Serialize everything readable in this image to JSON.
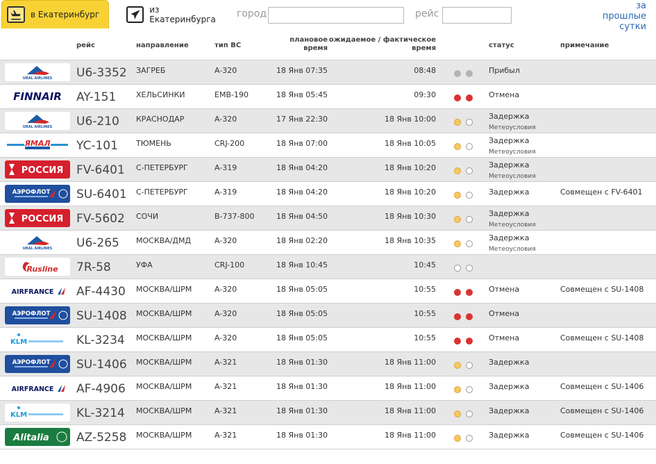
{
  "tabs": {
    "arrivals": {
      "label": "в Екатеринбург",
      "icon": "plane-arrival-icon"
    },
    "departures": {
      "label": "из Екатеринбурга",
      "icon": "plane-departure-icon"
    }
  },
  "filters": {
    "city_label": "город",
    "city_value": "",
    "flight_label": "рейс",
    "flight_value": ""
  },
  "past_link": {
    "line1": "за прошлые",
    "line2": "сутки"
  },
  "columns": {
    "flight": "рейс",
    "destination": "направление",
    "aircraft": "тип ВС",
    "planned_1": "плановое",
    "planned_2": "время",
    "expected_1": "ожидаемое / фактическое",
    "expected_2": "время",
    "status": "статус",
    "note": "примечание"
  },
  "colors": {
    "tab_active": "#f8d234",
    "link": "#2a68b4",
    "row_alt": "#e7e7e7",
    "dot_red": "#db3232",
    "dot_amber": "#f8c760",
    "dot_grey": "#b3b3b3"
  },
  "rows": [
    {
      "logo": "ural",
      "flight": "U6-3352",
      "destination": "ЗАГРЕБ",
      "aircraft": "A-320",
      "planned": "18 Янв 07:35",
      "expected": "08:48",
      "dots": [
        "grey",
        "grey"
      ],
      "status": "Прибыл",
      "substatus": "",
      "note": ""
    },
    {
      "logo": "finnair",
      "flight": "AY-151",
      "destination": "ХЕЛЬСИНКИ",
      "aircraft": "EMB-190",
      "planned": "18 Янв 05:45",
      "expected": "09:30",
      "dots": [
        "red",
        "red"
      ],
      "status": "Отмена",
      "substatus": "",
      "note": ""
    },
    {
      "logo": "ural",
      "flight": "U6-210",
      "destination": "КРАСНОДАР",
      "aircraft": "A-320",
      "planned": "17 Янв 22:30",
      "expected": "18 Янв 10:00",
      "dots": [
        "amber",
        "empty"
      ],
      "status": "Задержка",
      "substatus": "Метеоусловия",
      "note": ""
    },
    {
      "logo": "yamal",
      "flight": "YC-101",
      "destination": "ТЮМЕНЬ",
      "aircraft": "CRJ-200",
      "planned": "18 Янв 07:00",
      "expected": "18 Янв 10:05",
      "dots": [
        "amber",
        "empty"
      ],
      "status": "Задержка",
      "substatus": "Метеоусловия",
      "note": ""
    },
    {
      "logo": "rossiya",
      "flight": "FV-6401",
      "destination": "С-ПЕТЕРБУРГ",
      "aircraft": "A-319",
      "planned": "18 Янв 04:20",
      "expected": "18 Янв 10:20",
      "dots": [
        "amber",
        "empty"
      ],
      "status": "Задержка",
      "substatus": "Метеоусловия",
      "note": ""
    },
    {
      "logo": "aeroflot",
      "flight": "SU-6401",
      "destination": "С-ПЕТЕРБУРГ",
      "aircraft": "A-319",
      "planned": "18 Янв 04:20",
      "expected": "18 Янв 10:20",
      "dots": [
        "amber",
        "empty"
      ],
      "status": "Задержка",
      "substatus": "",
      "note": "Совмещен с FV-6401"
    },
    {
      "logo": "rossiya",
      "flight": "FV-5602",
      "destination": "СОЧИ",
      "aircraft": "B-737-800",
      "planned": "18 Янв 04:50",
      "expected": "18 Янв 10:30",
      "dots": [
        "amber",
        "empty"
      ],
      "status": "Задержка",
      "substatus": "Метеоусловия",
      "note": ""
    },
    {
      "logo": "ural",
      "flight": "U6-265",
      "destination": "МОСКВА/ДМД",
      "aircraft": "A-320",
      "planned": "18 Янв 02:20",
      "expected": "18 Янв 10:35",
      "dots": [
        "amber",
        "empty"
      ],
      "status": "Задержка",
      "substatus": "Метеоусловия",
      "note": ""
    },
    {
      "logo": "rusline",
      "flight": "7R-58",
      "destination": "УФА",
      "aircraft": "CRJ-100",
      "planned": "18 Янв 10:45",
      "expected": "10:45",
      "dots": [
        "empty",
        "empty"
      ],
      "status": "",
      "substatus": "",
      "note": ""
    },
    {
      "logo": "airfrance",
      "flight": "AF-4430",
      "destination": "МОСКВА/ШРМ",
      "aircraft": "A-320",
      "planned": "18 Янв 05:05",
      "expected": "10:55",
      "dots": [
        "red",
        "red"
      ],
      "status": "Отмена",
      "substatus": "",
      "note": "Совмещен с SU-1408"
    },
    {
      "logo": "aeroflot",
      "flight": "SU-1408",
      "destination": "МОСКВА/ШРМ",
      "aircraft": "A-320",
      "planned": "18 Янв 05:05",
      "expected": "10:55",
      "dots": [
        "red",
        "red"
      ],
      "status": "Отмена",
      "substatus": "",
      "note": ""
    },
    {
      "logo": "klm",
      "flight": "KL-3234",
      "destination": "МОСКВА/ШРМ",
      "aircraft": "A-320",
      "planned": "18 Янв 05:05",
      "expected": "10:55",
      "dots": [
        "red",
        "red"
      ],
      "status": "Отмена",
      "substatus": "",
      "note": "Совмещен с SU-1408"
    },
    {
      "logo": "aeroflot",
      "flight": "SU-1406",
      "destination": "МОСКВА/ШРМ",
      "aircraft": "A-321",
      "planned": "18 Янв 01:30",
      "expected": "18 Янв 11:00",
      "dots": [
        "amber",
        "empty"
      ],
      "status": "Задержка",
      "substatus": "",
      "note": ""
    },
    {
      "logo": "airfrance",
      "flight": "AF-4906",
      "destination": "МОСКВА/ШРМ",
      "aircraft": "A-321",
      "planned": "18 Янв 01:30",
      "expected": "18 Янв 11:00",
      "dots": [
        "amber",
        "empty"
      ],
      "status": "Задержка",
      "substatus": "",
      "note": "Совмещен с SU-1406"
    },
    {
      "logo": "klm",
      "flight": "KL-3214",
      "destination": "МОСКВА/ШРМ",
      "aircraft": "A-321",
      "planned": "18 Янв 01:30",
      "expected": "18 Янв 11:00",
      "dots": [
        "amber",
        "empty"
      ],
      "status": "Задержка",
      "substatus": "",
      "note": "Совмещен с SU-1406"
    },
    {
      "logo": "alitalia",
      "flight": "AZ-5258",
      "destination": "МОСКВА/ШРМ",
      "aircraft": "A-321",
      "planned": "18 Янв 01:30",
      "expected": "18 Янв 11:00",
      "dots": [
        "amber",
        "empty"
      ],
      "status": "Задержка",
      "substatus": "",
      "note": "Совмещен с SU-1406"
    }
  ],
  "logo_text": {
    "ural": "URAL AIRLINES",
    "finnair": "FINNAIR",
    "yamal": "ЯМАЛ",
    "rossiya": "РОССИЯ",
    "aeroflot": "АЭРОФЛОТ",
    "rusline": "Rusline",
    "airfrance": "AIRFRANCE",
    "klm": "KLM",
    "alitalia": "Alitalia"
  }
}
